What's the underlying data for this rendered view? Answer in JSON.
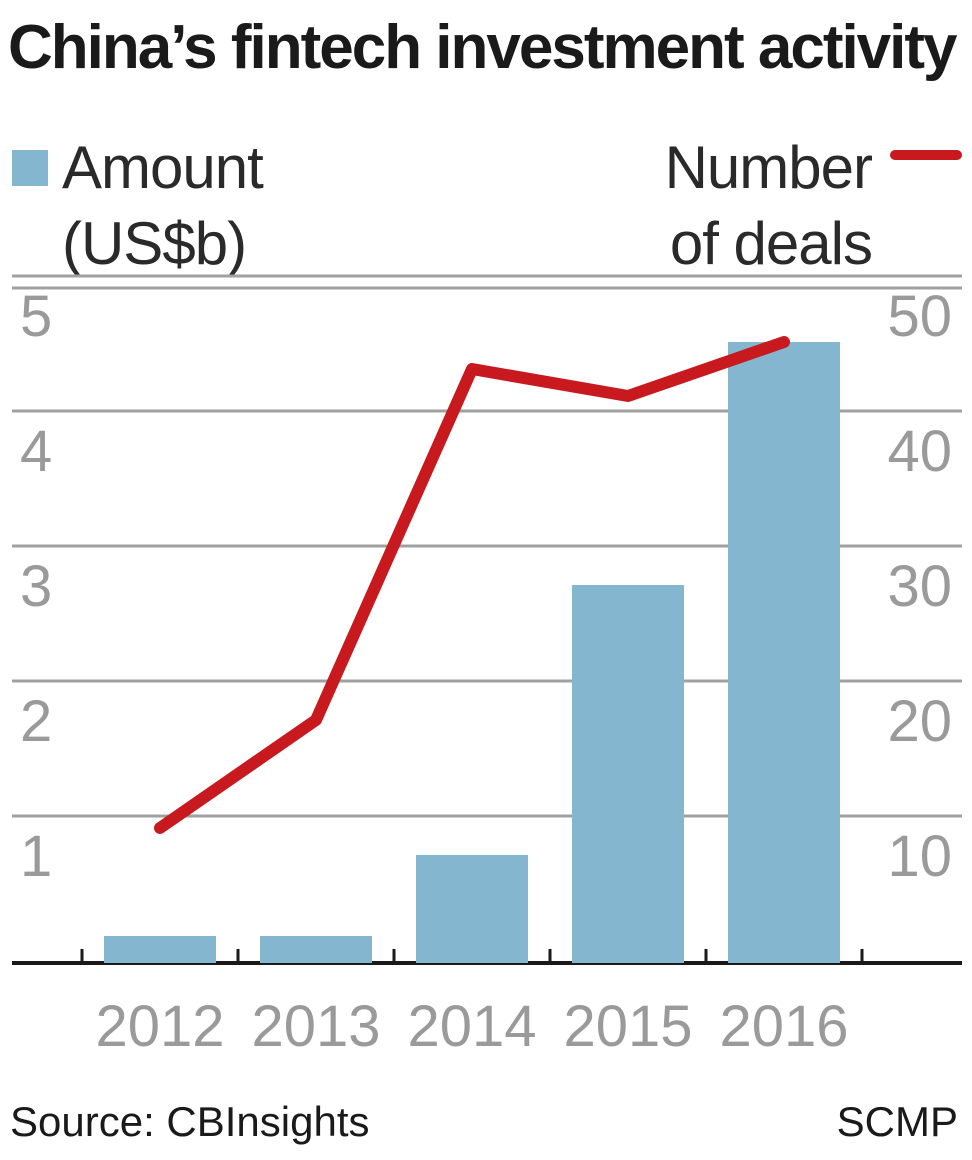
{
  "chart_data": {
    "type": "bar",
    "title": "China’s fintech investment activity",
    "categories": [
      "2012",
      "2013",
      "2014",
      "2015",
      "2016"
    ],
    "series": [
      {
        "name": "Amount\n(US$b)",
        "type": "bar",
        "axis": "left",
        "values": [
          0.2,
          0.2,
          0.8,
          2.8,
          4.6
        ]
      },
      {
        "name": "Number\nof deals",
        "type": "line",
        "axis": "right",
        "values": [
          10,
          18,
          44,
          42,
          46
        ]
      }
    ],
    "y_left": {
      "ylim": [
        0,
        5
      ],
      "ticks": [
        1,
        2,
        3,
        4,
        5
      ]
    },
    "y_right": {
      "ylim": [
        0,
        50
      ],
      "ticks": [
        10,
        20,
        30,
        40,
        50
      ]
    },
    "grid": true,
    "legend": {
      "amount": "top-left",
      "deals": "top-right"
    }
  },
  "colors": {
    "bar": "#85b6d0",
    "line": "#c8191f",
    "grid": "#a0a0a0",
    "axis": "#1a1a1a"
  },
  "footer": {
    "source": "Source: CBInsights",
    "credit": "SCMP"
  }
}
